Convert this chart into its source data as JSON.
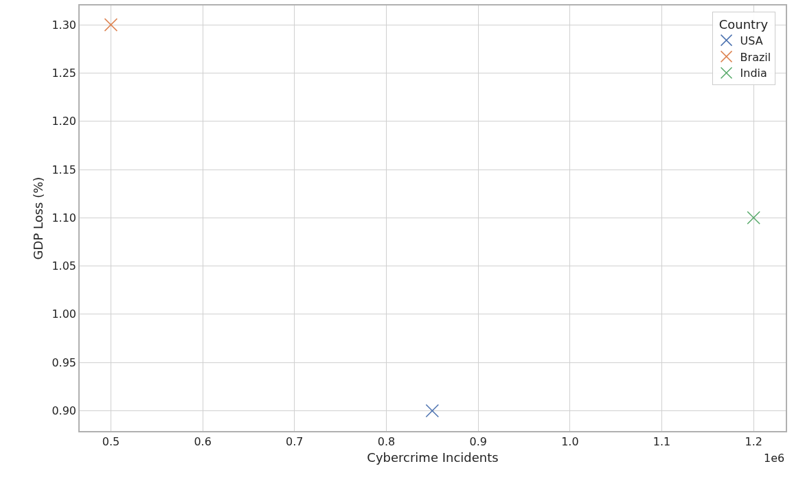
{
  "chart_data": {
    "type": "scatter",
    "xlabel": "Cybercrime Incidents",
    "ylabel": "GDP Loss (%)",
    "legend_title": "Country",
    "annotations": [
      "1e6"
    ],
    "series": [
      {
        "name": "USA",
        "color": "#4c72b0",
        "x": [
          0.85
        ],
        "values": [
          0.9
        ]
      },
      {
        "name": "Brazil",
        "color": "#dd8452",
        "x": [
          0.5
        ],
        "values": [
          1.3
        ]
      },
      {
        "name": "India",
        "color": "#55a868",
        "x": [
          1.2
        ],
        "values": [
          1.1
        ]
      }
    ],
    "xlim": [
      0.466,
      1.235
    ],
    "xticks": [
      0.5,
      0.6,
      0.7,
      0.8,
      0.9,
      {
        "value": 1.0,
        "label": "1.0"
      },
      1.1,
      1.2
    ],
    "ylim": [
      0.879,
      1.32
    ],
    "yticks": [
      {
        "value": 0.9,
        "label": "0.90"
      },
      {
        "value": 0.95,
        "label": "0.95"
      },
      {
        "value": 1.0,
        "label": "1.00"
      },
      {
        "value": 1.05,
        "label": "1.05"
      },
      {
        "value": 1.1,
        "label": "1.10"
      },
      {
        "value": 1.15,
        "label": "1.15"
      },
      {
        "value": 1.2,
        "label": "1.20"
      },
      {
        "value": 1.25,
        "label": "1.25"
      },
      {
        "value": 1.3,
        "label": "1.30"
      }
    ],
    "grid": true,
    "legend": "top right",
    "marker": "cross"
  }
}
